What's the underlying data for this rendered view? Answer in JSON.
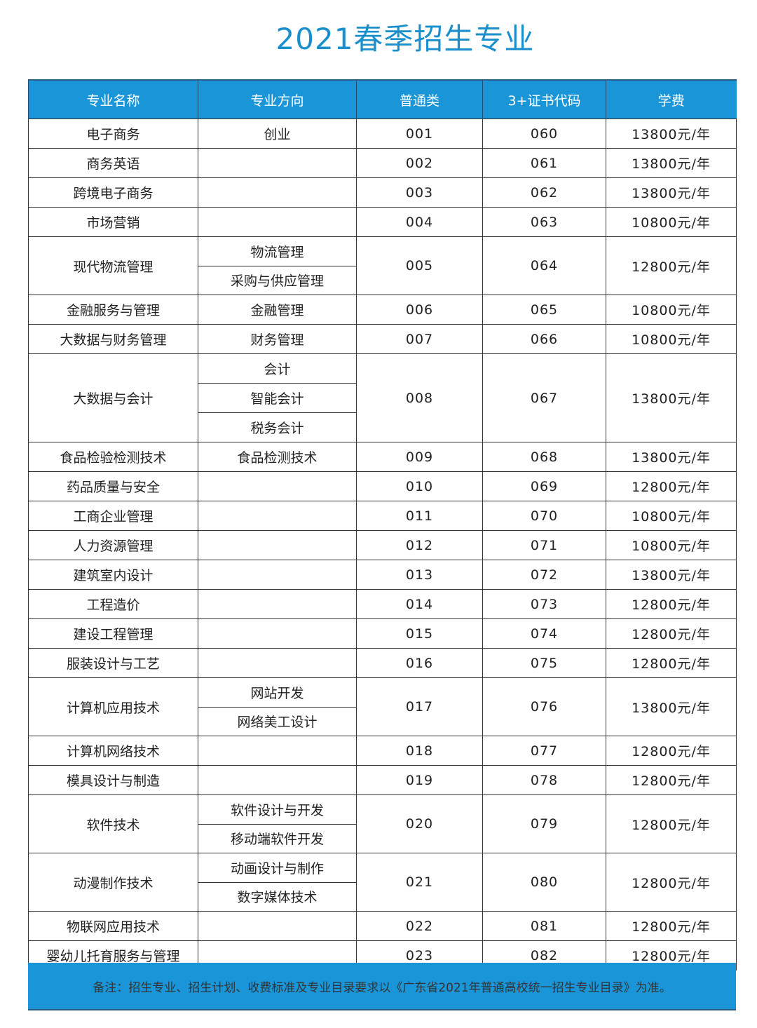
{
  "title": "2021春季招生专业",
  "colors": {
    "accent": "#1a96d8",
    "title": "#1a8fcc"
  },
  "headers": [
    "专业名称",
    "专业方向",
    "普通类",
    "3+证书代码",
    "学费"
  ],
  "rows": [
    {
      "name": "电子商务",
      "directions": [
        "创业"
      ],
      "general": "001",
      "code": "060",
      "fee": "13800元/年"
    },
    {
      "name": "商务英语",
      "directions": [],
      "general": "002",
      "code": "061",
      "fee": "13800元/年"
    },
    {
      "name": "跨境电子商务",
      "directions": [],
      "general": "003",
      "code": "062",
      "fee": "13800元/年"
    },
    {
      "name": "市场营销",
      "directions": [],
      "general": "004",
      "code": "063",
      "fee": "10800元/年"
    },
    {
      "name": "现代物流管理",
      "directions": [
        "物流管理",
        "采购与供应管理"
      ],
      "general": "005",
      "code": "064",
      "fee": "12800元/年"
    },
    {
      "name": "金融服务与管理",
      "directions": [
        "金融管理"
      ],
      "general": "006",
      "code": "065",
      "fee": "10800元/年"
    },
    {
      "name": "大数据与财务管理",
      "directions": [
        "财务管理"
      ],
      "general": "007",
      "code": "066",
      "fee": "10800元/年"
    },
    {
      "name": "大数据与会计",
      "directions": [
        "会计",
        "智能会计",
        "税务会计"
      ],
      "general": "008",
      "code": "067",
      "fee": "13800元/年"
    },
    {
      "name": "食品检验检测技术",
      "directions": [
        "食品检测技术"
      ],
      "general": "009",
      "code": "068",
      "fee": "13800元/年"
    },
    {
      "name": "药品质量与安全",
      "directions": [],
      "general": "010",
      "code": "069",
      "fee": "12800元/年"
    },
    {
      "name": "工商企业管理",
      "directions": [],
      "general": "011",
      "code": "070",
      "fee": "10800元/年"
    },
    {
      "name": "人力资源管理",
      "directions": [],
      "general": "012",
      "code": "071",
      "fee": "10800元/年"
    },
    {
      "name": "建筑室内设计",
      "directions": [],
      "general": "013",
      "code": "072",
      "fee": "13800元/年"
    },
    {
      "name": "工程造价",
      "directions": [],
      "general": "014",
      "code": "073",
      "fee": "12800元/年"
    },
    {
      "name": "建设工程管理",
      "directions": [],
      "general": "015",
      "code": "074",
      "fee": "12800元/年"
    },
    {
      "name": "服装设计与工艺",
      "directions": [],
      "general": "016",
      "code": "075",
      "fee": "12800元/年"
    },
    {
      "name": "计算机应用技术",
      "directions": [
        "网站开发",
        "网络美工设计"
      ],
      "general": "017",
      "code": "076",
      "fee": "13800元/年"
    },
    {
      "name": "计算机网络技术",
      "directions": [],
      "general": "018",
      "code": "077",
      "fee": "12800元/年"
    },
    {
      "name": "模具设计与制造",
      "directions": [],
      "general": "019",
      "code": "078",
      "fee": "12800元/年"
    },
    {
      "name": "软件技术",
      "directions": [
        "软件设计与开发",
        "移动端软件开发"
      ],
      "general": "020",
      "code": "079",
      "fee": "12800元/年"
    },
    {
      "name": "动漫制作技术",
      "directions": [
        "动画设计与制作",
        "数字媒体技术"
      ],
      "general": "021",
      "code": "080",
      "fee": "12800元/年"
    },
    {
      "name": "物联网应用技术",
      "directions": [],
      "general": "022",
      "code": "081",
      "fee": "12800元/年"
    },
    {
      "name": "婴幼儿托育服务与管理",
      "directions": [],
      "general": "023",
      "code": "082",
      "fee": "12800元/年"
    }
  ],
  "footer_note": "备注：招生专业、招生计划、收费标准及专业目录要求以《广东省2021年普通高校统一招生专业目录》为准。"
}
